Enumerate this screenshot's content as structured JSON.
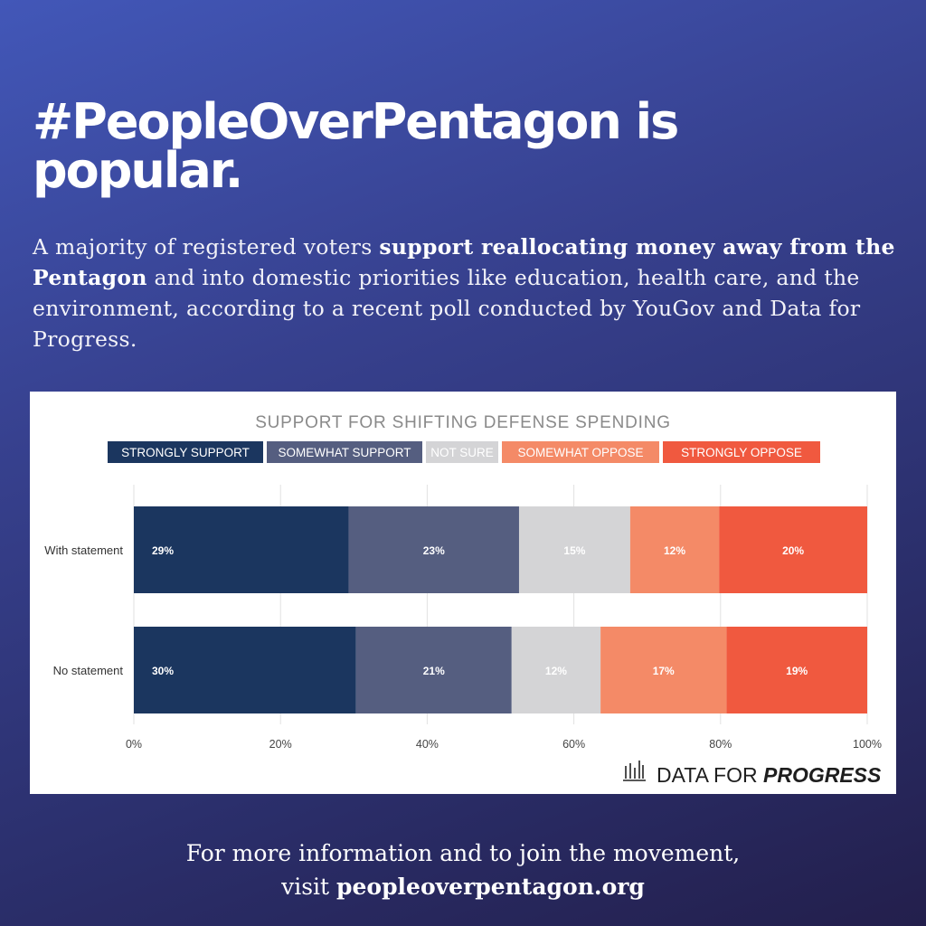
{
  "headline": "#PeopleOverPentagon is popular.",
  "subtitle": {
    "part1": "A majority of registered voters ",
    "bold": "support reallocating money away from the Pentagon",
    "part2": " and into domestic priorities like education, health care, and the environment, according to a recent poll conducted by YouGov and Data for Progress."
  },
  "footer": {
    "line1": "For more information and to join the movement,",
    "visit": "visit ",
    "url": "peopleoverpentagon.org"
  },
  "brand": {
    "data_for": "DATA FOR ",
    "progress": "PROGRESS",
    "icon": "bar-chart-icon"
  },
  "chart_data": {
    "type": "bar",
    "orientation": "horizontal-stacked",
    "title": "SUPPORT FOR SHIFTING DEFENSE SPENDING",
    "categories": [
      "With statement",
      "No statement"
    ],
    "series": [
      {
        "name": "STRONGLY SUPPORT",
        "color": "#1b365f",
        "values": [
          29,
          30
        ],
        "labels": [
          "29%",
          "30%"
        ]
      },
      {
        "name": "SOMEWHAT SUPPORT",
        "color": "#555e80",
        "values": [
          23,
          21
        ],
        "labels": [
          "23%",
          "21%"
        ]
      },
      {
        "name": "NOT SURE",
        "color": "#d4d4d6",
        "values": [
          15,
          12
        ],
        "labels": [
          "15%",
          "12%"
        ]
      },
      {
        "name": "SOMEWHAT OPPOSE",
        "color": "#f48a67",
        "values": [
          12,
          17
        ],
        "labels": [
          "12%",
          "17%"
        ]
      },
      {
        "name": "STRONGLY OPPOSE",
        "color": "#f0593f",
        "values": [
          20,
          19
        ],
        "labels": [
          "20%",
          "19%"
        ]
      }
    ],
    "xlim": [
      0,
      100
    ],
    "xticks": [
      "0%",
      "20%",
      "40%",
      "60%",
      "80%",
      "100%"
    ],
    "grid": true,
    "legend": "top"
  }
}
